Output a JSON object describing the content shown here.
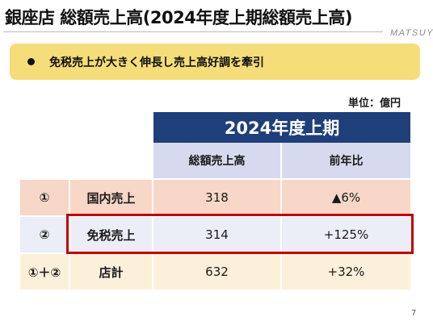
{
  "slide": {
    "title": "銀座店 総額売上高(2024年度上期総額売上高)",
    "logo": "MATSUYA",
    "callout": "免税売上が大きく伸長し売上高好調を牽引",
    "unit": "単位：億円",
    "page_number": "7"
  },
  "table": {
    "period_header": "2024年度上期",
    "columns": [
      "総額売上高",
      "前年比"
    ],
    "rows": [
      {
        "index": "①",
        "label": "国内売上",
        "sales": "318",
        "yoy": "▲6%"
      },
      {
        "index": "②",
        "label": "免税売上",
        "sales": "314",
        "yoy": "+125%"
      },
      {
        "index": "①＋②",
        "label": "店計",
        "sales": "632",
        "yoy": "+32%"
      }
    ],
    "highlighted_row": "免税売上"
  },
  "colors": {
    "header_bg": "#1f3f7a",
    "subheader_bg": "#d7d9ef",
    "callout_bg": "#f5dd7a",
    "highlight_border": "#c00000",
    "row1_bg": "#f7d7c7",
    "row2_bg": "#eceef7",
    "row3_bg": "#fdf0da"
  }
}
